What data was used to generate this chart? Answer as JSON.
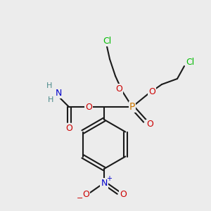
{
  "bg_color": "#ececec",
  "bond_color": "#1a1a1a",
  "colors": {
    "C": "#1a1a1a",
    "O": "#cc0000",
    "N": "#0000cc",
    "P": "#cc7700",
    "Cl": "#00bb00",
    "H": "#4a8a8a"
  }
}
